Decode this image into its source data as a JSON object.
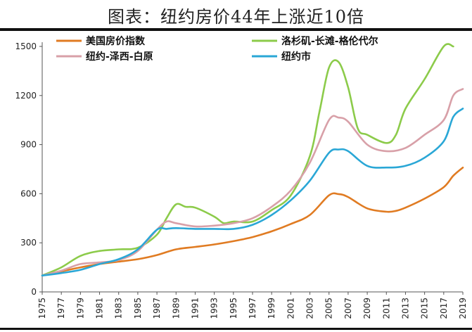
{
  "page": {
    "title": "图表：纽约房价44年上涨近10倍"
  },
  "chart_data": {
    "type": "line",
    "title": "图表：纽约房价44年上涨近10倍",
    "xlabel": "",
    "ylabel": "",
    "xlim": [
      1975,
      2019
    ],
    "ylim": [
      0,
      1500
    ],
    "yticks": [
      0,
      300,
      600,
      900,
      1200,
      1500
    ],
    "xticks": [
      1975,
      1977,
      1979,
      1981,
      1983,
      1985,
      1987,
      1989,
      1991,
      1993,
      1995,
      1997,
      1999,
      2001,
      2003,
      2005,
      2007,
      2009,
      2011,
      2013,
      2015,
      2017,
      2019
    ],
    "grid": false,
    "legend_position": "top",
    "series": [
      {
        "name": "美国房价指数",
        "color": "#e07b22",
        "x": [
          1975,
          1977,
          1979,
          1981,
          1983,
          1985,
          1987,
          1989,
          1991,
          1993,
          1995,
          1997,
          1999,
          2001,
          2003,
          2005,
          2006,
          2007,
          2009,
          2011,
          2012,
          2013,
          2015,
          2017,
          2018,
          2019
        ],
        "values": [
          100,
          125,
          150,
          170,
          185,
          200,
          225,
          260,
          275,
          290,
          310,
          335,
          370,
          415,
          470,
          590,
          598,
          580,
          510,
          490,
          495,
          515,
          570,
          640,
          710,
          760
        ]
      },
      {
        "name": "洛杉矶-长滩-格伦代尔",
        "color": "#8ccb4a",
        "x": [
          1975,
          1977,
          1979,
          1981,
          1983,
          1985,
          1987,
          1988,
          1989,
          1990,
          1991,
          1993,
          1994,
          1995,
          1997,
          1999,
          2001,
          2003,
          2004,
          2005,
          2006,
          2007,
          2008,
          2009,
          2011,
          2012,
          2013,
          2015,
          2017,
          2018
        ],
        "values": [
          100,
          150,
          220,
          250,
          260,
          270,
          350,
          450,
          535,
          520,
          515,
          460,
          420,
          430,
          430,
          500,
          590,
          830,
          1100,
          1370,
          1405,
          1250,
          1000,
          960,
          910,
          960,
          1120,
          1300,
          1500,
          1500
        ]
      },
      {
        "name": "纽约-泽西-白原",
        "color": "#d8a0a8",
        "x": [
          1975,
          1977,
          1979,
          1981,
          1983,
          1985,
          1987,
          1988,
          1989,
          1991,
          1993,
          1995,
          1997,
          1999,
          2001,
          2003,
          2005,
          2006,
          2007,
          2009,
          2011,
          2013,
          2015,
          2017,
          2018,
          2019
        ],
        "values": [
          100,
          130,
          170,
          180,
          195,
          250,
          380,
          430,
          420,
          400,
          405,
          420,
          450,
          520,
          620,
          790,
          1050,
          1065,
          1040,
          900,
          860,
          880,
          960,
          1050,
          1200,
          1240
        ]
      },
      {
        "name": "纽约市",
        "color": "#2aa7d6",
        "x": [
          1975,
          1977,
          1979,
          1981,
          1983,
          1985,
          1987,
          1988,
          1989,
          1991,
          1993,
          1995,
          1997,
          1999,
          2001,
          2003,
          2005,
          2006,
          2007,
          2009,
          2011,
          2013,
          2015,
          2017,
          2018,
          2019
        ],
        "values": [
          100,
          115,
          135,
          170,
          200,
          260,
          380,
          385,
          390,
          385,
          385,
          385,
          410,
          470,
          560,
          680,
          850,
          870,
          860,
          770,
          760,
          770,
          820,
          920,
          1070,
          1120
        ]
      }
    ]
  }
}
